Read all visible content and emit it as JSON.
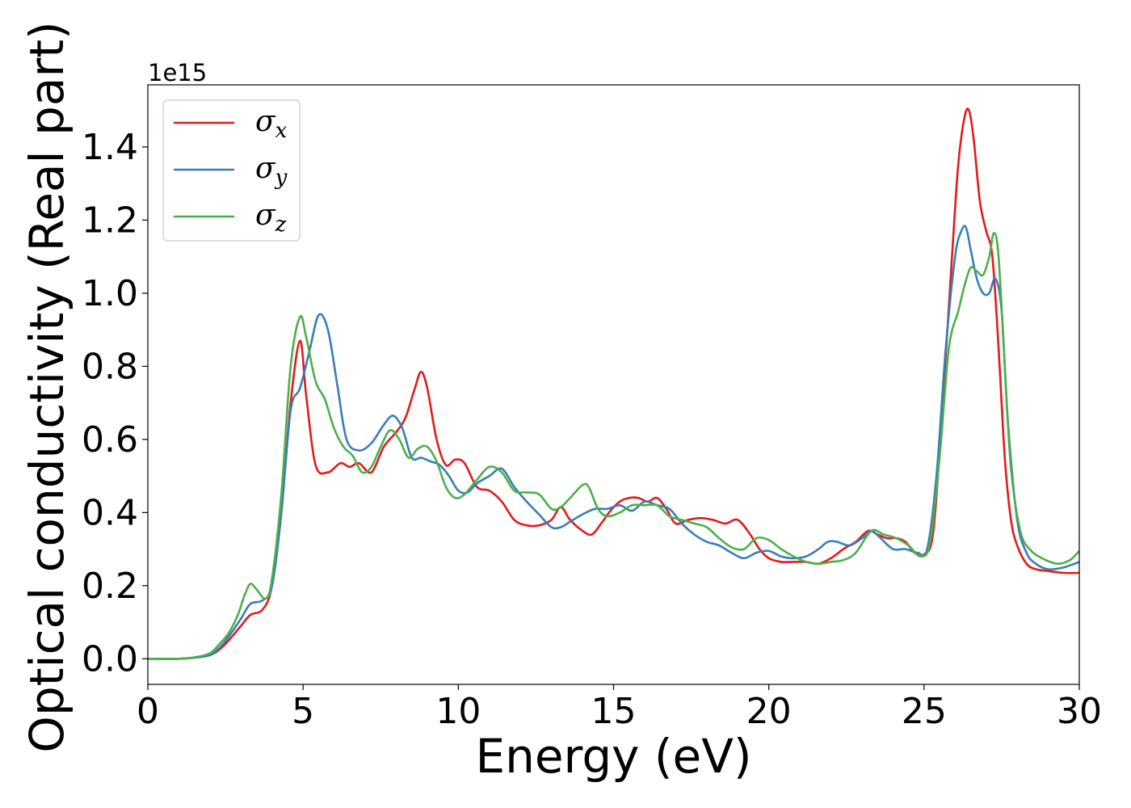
{
  "chart_data": {
    "type": "line",
    "title": "",
    "xlabel": "Energy (eV)",
    "ylabel": "Optical conductivity (Real part)",
    "y_offset_label": "1e15",
    "xlim": [
      0,
      30
    ],
    "ylim": [
      -0.07,
      1.57
    ],
    "xticks": [
      0,
      5,
      10,
      15,
      20,
      25,
      30
    ],
    "yticks": [
      0.0,
      0.2,
      0.4,
      0.6,
      0.8,
      1.0,
      1.2,
      1.4
    ],
    "xtick_labels": [
      "0",
      "5",
      "10",
      "15",
      "20",
      "25",
      "30"
    ],
    "ytick_labels": [
      "0.0",
      "0.2",
      "0.4",
      "0.6",
      "0.8",
      "1.0",
      "1.2",
      "1.4"
    ],
    "grid": false,
    "legend_position": "top-left",
    "series": [
      {
        "name": "σx",
        "symbol": "σ",
        "subscript": "x",
        "color": "#e41a1c",
        "x": [
          0,
          1,
          1.5,
          2,
          2.3,
          2.6,
          3,
          3.3,
          3.7,
          4,
          4.3,
          4.6,
          4.9,
          5.1,
          5.4,
          5.8,
          6.2,
          6.5,
          6.8,
          7.2,
          7.6,
          8,
          8.3,
          8.6,
          8.8,
          9,
          9.3,
          9.6,
          9.9,
          10.2,
          10.6,
          11,
          11.4,
          11.8,
          12.2,
          12.6,
          13,
          13.3,
          13.6,
          14,
          14.3,
          14.6,
          14.9,
          15.2,
          15.5,
          15.8,
          16.1,
          16.4,
          16.7,
          17,
          17.4,
          17.8,
          18.2,
          18.6,
          19,
          19.4,
          19.7,
          20,
          20.4,
          20.8,
          21.2,
          21.6,
          22,
          22.4,
          22.8,
          23.2,
          23.5,
          23.8,
          24.1,
          24.4,
          24.7,
          25,
          25.3,
          25.6,
          25.9,
          26.1,
          26.3,
          26.45,
          26.6,
          26.8,
          27,
          27.2,
          27.4,
          27.6,
          27.8,
          28,
          28.3,
          28.6,
          29,
          29.5,
          30
        ],
        "y": [
          0,
          0,
          0.003,
          0.01,
          0.025,
          0.05,
          0.09,
          0.12,
          0.135,
          0.2,
          0.4,
          0.7,
          0.87,
          0.72,
          0.53,
          0.51,
          0.535,
          0.525,
          0.535,
          0.51,
          0.58,
          0.62,
          0.66,
          0.74,
          0.785,
          0.74,
          0.6,
          0.53,
          0.545,
          0.535,
          0.47,
          0.46,
          0.43,
          0.38,
          0.365,
          0.365,
          0.38,
          0.415,
          0.38,
          0.35,
          0.34,
          0.37,
          0.405,
          0.43,
          0.44,
          0.44,
          0.43,
          0.44,
          0.41,
          0.37,
          0.38,
          0.385,
          0.38,
          0.37,
          0.38,
          0.34,
          0.3,
          0.275,
          0.265,
          0.265,
          0.265,
          0.26,
          0.275,
          0.3,
          0.32,
          0.35,
          0.34,
          0.33,
          0.33,
          0.32,
          0.29,
          0.285,
          0.35,
          0.7,
          1.1,
          1.35,
          1.48,
          1.5,
          1.42,
          1.25,
          1.17,
          1.1,
          0.85,
          0.55,
          0.38,
          0.31,
          0.26,
          0.245,
          0.24,
          0.235,
          0.235
        ]
      },
      {
        "name": "σy",
        "symbol": "σ",
        "subscript": "y",
        "color": "#377eb8",
        "x": [
          0,
          1,
          1.5,
          2,
          2.3,
          2.6,
          3,
          3.3,
          3.7,
          4,
          4.3,
          4.6,
          4.9,
          5.2,
          5.5,
          5.8,
          6.1,
          6.4,
          6.8,
          7.2,
          7.6,
          7.9,
          8.2,
          8.5,
          8.8,
          9.1,
          9.4,
          9.7,
          10,
          10.3,
          10.6,
          11,
          11.4,
          11.8,
          12.2,
          12.6,
          13,
          13.3,
          13.6,
          14,
          14.4,
          14.8,
          15.2,
          15.6,
          16,
          16.4,
          16.8,
          17.2,
          17.6,
          18,
          18.4,
          18.8,
          19.2,
          19.6,
          20,
          20.4,
          20.8,
          21.2,
          21.6,
          21.9,
          22.2,
          22.6,
          23,
          23.3,
          23.6,
          24,
          24.4,
          24.8,
          25.1,
          25.4,
          25.7,
          26,
          26.2,
          26.35,
          26.5,
          26.7,
          26.9,
          27.1,
          27.3,
          27.5,
          27.7,
          28,
          28.3,
          28.6,
          29,
          29.5,
          30
        ],
        "y": [
          0,
          0,
          0.003,
          0.01,
          0.03,
          0.06,
          0.11,
          0.15,
          0.16,
          0.2,
          0.4,
          0.68,
          0.74,
          0.84,
          0.94,
          0.9,
          0.75,
          0.6,
          0.57,
          0.59,
          0.64,
          0.665,
          0.63,
          0.55,
          0.55,
          0.54,
          0.53,
          0.5,
          0.46,
          0.455,
          0.48,
          0.5,
          0.52,
          0.47,
          0.43,
          0.395,
          0.36,
          0.36,
          0.375,
          0.395,
          0.41,
          0.41,
          0.42,
          0.405,
          0.43,
          0.42,
          0.41,
          0.37,
          0.34,
          0.32,
          0.31,
          0.29,
          0.275,
          0.29,
          0.295,
          0.28,
          0.275,
          0.28,
          0.3,
          0.32,
          0.32,
          0.31,
          0.33,
          0.35,
          0.33,
          0.3,
          0.3,
          0.29,
          0.3,
          0.5,
          0.85,
          1.1,
          1.17,
          1.18,
          1.12,
          1.04,
          1.0,
          1.0,
          1.04,
          0.95,
          0.65,
          0.38,
          0.29,
          0.26,
          0.245,
          0.25,
          0.265
        ]
      },
      {
        "name": "σz",
        "symbol": "σ",
        "subscript": "z",
        "color": "#4daf4a",
        "x": [
          0,
          1,
          1.5,
          2,
          2.3,
          2.6,
          2.9,
          3.1,
          3.3,
          3.5,
          3.8,
          4,
          4.3,
          4.6,
          4.9,
          5.1,
          5.4,
          5.7,
          6,
          6.3,
          6.6,
          6.9,
          7.2,
          7.5,
          7.8,
          8.1,
          8.4,
          8.7,
          9,
          9.3,
          9.6,
          9.9,
          10.2,
          10.6,
          11,
          11.4,
          11.8,
          12.2,
          12.6,
          13,
          13.3,
          13.6,
          14,
          14.2,
          14.5,
          14.8,
          15.2,
          15.6,
          16,
          16.4,
          16.8,
          17.2,
          17.6,
          18,
          18.4,
          18.8,
          19.2,
          19.6,
          20,
          20.4,
          20.8,
          21.2,
          21.6,
          22,
          22.4,
          22.8,
          23.3,
          23.7,
          24.1,
          24.5,
          24.9,
          25.2,
          25.5,
          25.8,
          26.1,
          26.3,
          26.5,
          26.7,
          26.9,
          27.1,
          27.25,
          27.4,
          27.6,
          27.8,
          28.1,
          28.4,
          28.8,
          29.3,
          29.7,
          30
        ],
        "y": [
          0,
          0,
          0.004,
          0.015,
          0.04,
          0.07,
          0.12,
          0.17,
          0.205,
          0.19,
          0.165,
          0.22,
          0.45,
          0.8,
          0.935,
          0.88,
          0.76,
          0.71,
          0.63,
          0.58,
          0.555,
          0.51,
          0.525,
          0.58,
          0.625,
          0.6,
          0.55,
          0.575,
          0.58,
          0.54,
          0.47,
          0.44,
          0.45,
          0.49,
          0.525,
          0.51,
          0.46,
          0.455,
          0.45,
          0.41,
          0.415,
          0.44,
          0.475,
          0.47,
          0.41,
          0.39,
          0.4,
          0.42,
          0.42,
          0.42,
          0.39,
          0.38,
          0.37,
          0.36,
          0.33,
          0.305,
          0.3,
          0.33,
          0.325,
          0.3,
          0.28,
          0.265,
          0.26,
          0.265,
          0.27,
          0.29,
          0.35,
          0.34,
          0.33,
          0.31,
          0.28,
          0.32,
          0.55,
          0.85,
          0.95,
          1.02,
          1.07,
          1.06,
          1.05,
          1.1,
          1.165,
          1.1,
          0.8,
          0.52,
          0.35,
          0.3,
          0.275,
          0.26,
          0.27,
          0.295
        ]
      }
    ]
  }
}
